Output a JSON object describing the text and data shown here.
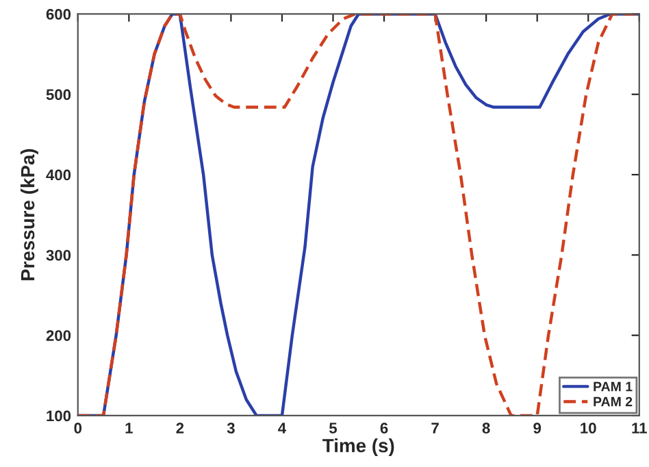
{
  "chart_data": {
    "type": "line",
    "xlabel": "Time (s)",
    "ylabel": "Pressure (kPa)",
    "xlim": [
      0,
      11
    ],
    "xticks": [
      0,
      1,
      2,
      3,
      4,
      5,
      6,
      7,
      8,
      9,
      10,
      11
    ],
    "ylim": [
      100,
      600
    ],
    "yticks": [
      100,
      200,
      300,
      400,
      500,
      600
    ],
    "grid": false,
    "legend": "bottom right",
    "series": [
      {
        "name": "PAM 1",
        "color": "#2a3fa8",
        "line_style": "solid",
        "x": [
          0,
          0.5,
          0.75,
          0.95,
          1.1,
          1.3,
          1.5,
          1.7,
          1.85,
          2.0,
          2.2,
          2.46,
          2.63,
          2.8,
          2.93,
          3.1,
          3.3,
          3.5,
          4.0,
          4.2,
          4.45,
          4.6,
          4.8,
          5.0,
          5.2,
          5.35,
          5.5,
          7.0,
          7.2,
          7.4,
          7.6,
          7.8,
          8.0,
          8.15,
          9.05,
          9.3,
          9.6,
          9.9,
          10.2,
          10.43,
          11
        ],
        "values": [
          100,
          100,
          200,
          300,
          400,
          490,
          550,
          585,
          600,
          600,
          510,
          400,
          300,
          240,
          200,
          155,
          120,
          100,
          100,
          200,
          310,
          410,
          470,
          515,
          555,
          585,
          600,
          600,
          565,
          535,
          512,
          496,
          487,
          484,
          484,
          515,
          550,
          578,
          594,
          600,
          600
        ]
      },
      {
        "name": "PAM 2",
        "color": "#d0401f",
        "line_style": "dashed",
        "x": [
          0,
          0.5,
          0.75,
          0.95,
          1.1,
          1.3,
          1.5,
          1.7,
          1.85,
          2.0,
          2.1,
          2.3,
          2.5,
          2.7,
          2.9,
          3.06,
          4.05,
          4.3,
          4.6,
          4.9,
          5.2,
          5.43,
          7.0,
          7.24,
          7.5,
          7.72,
          7.97,
          8.2,
          8.49,
          9.0,
          9.22,
          9.48,
          9.7,
          9.96,
          10.2,
          10.47,
          11
        ],
        "values": [
          100,
          100,
          200,
          300,
          400,
          490,
          550,
          585,
          600,
          600,
          580,
          545,
          518,
          498,
          488,
          484,
          484,
          510,
          545,
          575,
          594,
          600,
          600,
          500,
          400,
          300,
          200,
          140,
          100,
          100,
          200,
          300,
          400,
          500,
          565,
          600,
          600
        ]
      }
    ]
  }
}
